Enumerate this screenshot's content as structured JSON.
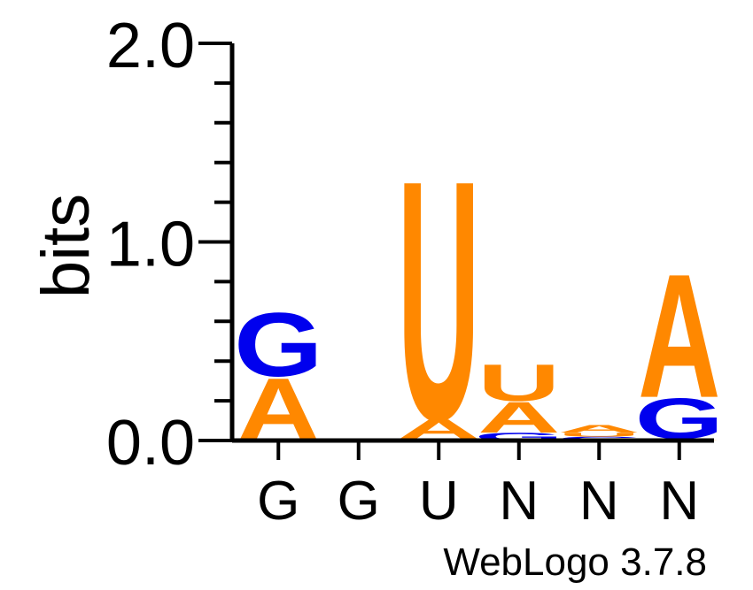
{
  "chart_data": {
    "type": "sequence-logo",
    "ylabel": "bits",
    "ylim": [
      0,
      2.0
    ],
    "yticks": [
      {
        "value": 0.0,
        "label": "0.0"
      },
      {
        "value": 1.0,
        "label": "1.0"
      },
      {
        "value": 2.0,
        "label": "2.0"
      }
    ],
    "minor_tick_step": 0.2,
    "x_tick_labels": [
      "G",
      "G",
      "U",
      "N",
      "N",
      "N"
    ],
    "footer": "WebLogo 3.7.8",
    "colors": {
      "A": "#ff8800",
      "U": "#ff8800",
      "G": "#0000ee",
      "C": "#0000ee"
    },
    "positions": [
      {
        "label": "G",
        "letters": [
          {
            "base": "C",
            "bits": 0.005
          },
          {
            "base": "A",
            "bits": 0.32
          },
          {
            "base": "G",
            "bits": 0.33
          }
        ]
      },
      {
        "label": "G",
        "letters": []
      },
      {
        "label": "U",
        "letters": [
          {
            "base": "G",
            "bits": 0.01
          },
          {
            "base": "A",
            "bits": 0.1
          },
          {
            "base": "U",
            "bits": 1.24
          }
        ]
      },
      {
        "label": "N",
        "letters": [
          {
            "base": "G",
            "bits": 0.04
          },
          {
            "base": "A",
            "bits": 0.16
          },
          {
            "base": "U",
            "bits": 0.19
          }
        ]
      },
      {
        "label": "N",
        "letters": [
          {
            "base": "C",
            "bits": 0.02
          },
          {
            "base": "U",
            "bits": 0.02
          },
          {
            "base": "A",
            "bits": 0.04
          }
        ]
      },
      {
        "label": "N",
        "letters": [
          {
            "base": "A",
            "bits": 0.01
          },
          {
            "base": "G",
            "bits": 0.21
          },
          {
            "base": "A",
            "bits": 0.64
          }
        ]
      }
    ]
  }
}
